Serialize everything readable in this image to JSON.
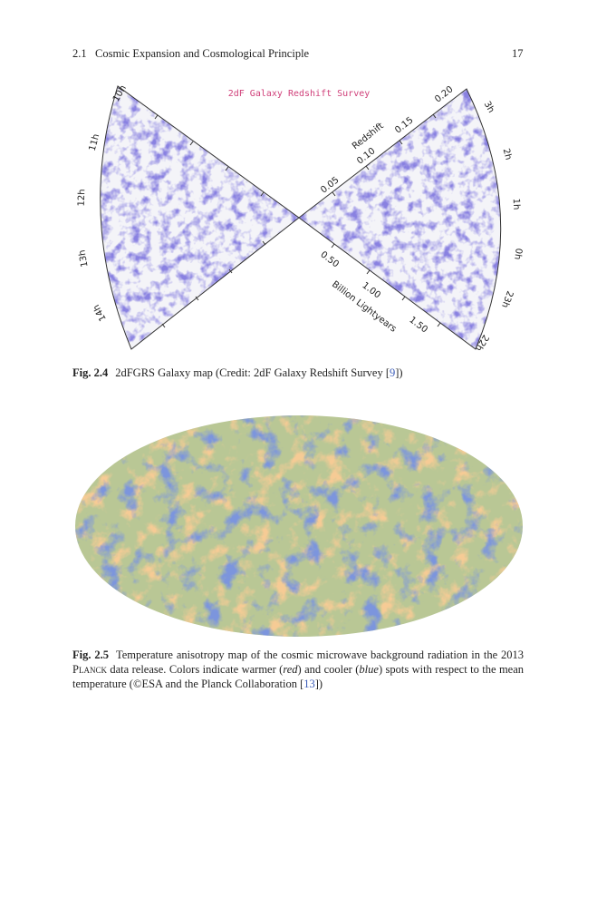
{
  "header": {
    "section": "2.1",
    "title": "Cosmic Expansion and Cosmological Principle",
    "page": "17"
  },
  "figure_1": {
    "title": "2dF Galaxy Redshift Survey",
    "ra_left": [
      "10h",
      "11h",
      "12h",
      "13h",
      "14h"
    ],
    "ra_right": [
      "3h",
      "2h",
      "1h",
      "0h",
      "23h",
      "22h"
    ],
    "redshift_label": "Redshift",
    "redshift_ticks": [
      "0.05",
      "0.10",
      "0.15",
      "0.20"
    ],
    "distance_label": "Billion Lightyears",
    "distance_ticks": [
      "0.50",
      "1.00",
      "1.50"
    ],
    "caption": {
      "label": "Fig. 2.4",
      "text": "2dFGRS Galaxy map (Credit: 2dF Galaxy Redshift Survey [",
      "ref": "9",
      "end": "])"
    }
  },
  "figure_2": {
    "caption": {
      "label": "Fig. 2.5",
      "parts": [
        "Temperature anisotropy map of the cosmic microwave background radiation in the 2013 ",
        "Planck",
        " data release. Colors indicate warmer (",
        "red",
        ") and cooler (",
        "blue",
        ") spots with respect to the mean temperature (©ESA and the Planck Collaboration [",
        "13",
        "])"
      ]
    }
  }
}
